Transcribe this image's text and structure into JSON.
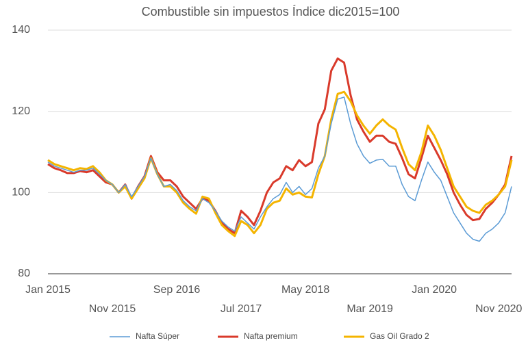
{
  "chart_data": {
    "type": "line",
    "title": "Combustible sin impuestos Índice dic2015=100",
    "categories": [
      "Jan 2015",
      null,
      null,
      null,
      null,
      null,
      null,
      null,
      null,
      null,
      "Nov 2015",
      null,
      null,
      null,
      null,
      null,
      null,
      null,
      null,
      null,
      "Sep 2016",
      null,
      null,
      null,
      null,
      null,
      null,
      null,
      null,
      null,
      "Jul 2017",
      null,
      null,
      null,
      null,
      null,
      null,
      null,
      null,
      null,
      "May 2018",
      null,
      null,
      null,
      null,
      null,
      null,
      null,
      null,
      null,
      "Mar 2019",
      null,
      null,
      null,
      null,
      null,
      null,
      null,
      null,
      null,
      "Jan 2020",
      null,
      null,
      null,
      null,
      null,
      null,
      null,
      null,
      null,
      "Nov 2020",
      null,
      null
    ],
    "series": [
      {
        "name": "Nafta Súper",
        "color": "#5b9bd5",
        "values": [
          107.5,
          106.5,
          106,
          105.5,
          105,
          105.5,
          105.5,
          106,
          104.5,
          103,
          102,
          100,
          102,
          99,
          101.5,
          104,
          108.5,
          104.5,
          101.5,
          102,
          100.5,
          98,
          96.5,
          95.5,
          98.5,
          97.5,
          95.5,
          93,
          91.5,
          90.5,
          94,
          92.5,
          91,
          94,
          96.5,
          98.5,
          99.5,
          102.5,
          100,
          101.5,
          99.5,
          101,
          106,
          109,
          117,
          123,
          123.5,
          117,
          112,
          109,
          107.2,
          108,
          108.2,
          106.5,
          106.5,
          102,
          99,
          98,
          103,
          107.5,
          105,
          103,
          99,
          95,
          92.5,
          90,
          88.5,
          88,
          90,
          91,
          92.5,
          95,
          101.5
        ]
      },
      {
        "name": "Nafta premium",
        "color": "#d93a2b",
        "values": [
          107,
          106,
          105.5,
          104.8,
          104.8,
          105.3,
          105,
          105.5,
          104,
          102.5,
          102,
          100,
          102,
          98.5,
          101.5,
          104,
          109,
          105,
          103,
          103,
          101.5,
          99,
          97.5,
          96,
          98.5,
          98,
          95.5,
          92.5,
          91,
          90,
          95.5,
          94,
          92,
          95.5,
          100,
          102.5,
          103.5,
          106.5,
          105.5,
          108,
          106.5,
          107.5,
          117,
          120.5,
          130,
          133,
          132,
          124,
          118,
          115,
          112.5,
          114,
          114,
          112.5,
          112,
          108.5,
          104.5,
          103.5,
          108.5,
          114,
          111,
          108,
          104.5,
          100,
          97,
          94.5,
          93.2,
          93.5,
          96,
          97.5,
          99.5,
          102,
          109
        ]
      },
      {
        "name": "Gas Oil Grado 2",
        "color": "#f4b400",
        "values": [
          108,
          107,
          106.5,
          106,
          105.5,
          106,
          105.8,
          106.5,
          105,
          103,
          102,
          100,
          101.5,
          98.5,
          101,
          103.5,
          108.5,
          104.5,
          101.5,
          101.5,
          100,
          97.5,
          96,
          94.8,
          99,
          98.5,
          95,
          92,
          90.5,
          89.3,
          93,
          92,
          90,
          92,
          96,
          97.5,
          98,
          101,
          99.5,
          100,
          99,
          98.8,
          104.5,
          109,
          118,
          124.3,
          124.8,
          122.5,
          119,
          116.5,
          114.5,
          116.5,
          118,
          116.5,
          115.5,
          111,
          107,
          105.5,
          110,
          116.5,
          114,
          110.5,
          106,
          101.5,
          99,
          96.5,
          95.5,
          95,
          97,
          98,
          99.5,
          101.5,
          108
        ]
      }
    ],
    "ylim": [
      80,
      140
    ],
    "yticks": [
      80,
      100,
      120,
      140
    ],
    "grid": true,
    "legend": "bottom"
  }
}
